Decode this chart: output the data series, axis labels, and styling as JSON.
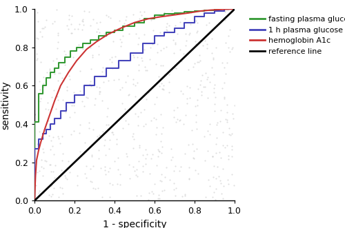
{
  "title": "",
  "xlabel": "1 - specificity",
  "ylabel": "sensitivity",
  "xlim": [
    0.0,
    1.0
  ],
  "ylim": [
    0.0,
    1.0
  ],
  "xticks": [
    0.0,
    0.2,
    0.4,
    0.6,
    0.8,
    1.0
  ],
  "yticks": [
    0.0,
    0.2,
    0.4,
    0.6,
    0.8,
    1.0
  ],
  "reference_line_color": "#000000",
  "green_color": "#339933",
  "blue_color": "#4444bb",
  "red_color": "#cc3333",
  "legend_labels": [
    "fasting plasma glucose",
    "1 h plasma glucose",
    "hemoglobin A1c",
    "reference line"
  ],
  "background_color": "#ffffff",
  "dot_color": "#cccccc",
  "green_fpr": [
    0.0,
    0.0,
    0.02,
    0.02,
    0.04,
    0.04,
    0.06,
    0.06,
    0.08,
    0.08,
    0.1,
    0.1,
    0.12,
    0.12,
    0.15,
    0.15,
    0.18,
    0.18,
    0.21,
    0.21,
    0.24,
    0.24,
    0.28,
    0.28,
    0.32,
    0.32,
    0.36,
    0.36,
    0.4,
    0.4,
    0.44,
    0.44,
    0.5,
    0.5,
    0.55,
    0.55,
    0.6,
    0.6,
    0.65,
    0.65,
    0.7,
    0.7,
    0.75,
    0.75,
    0.8,
    0.8,
    0.85,
    0.85,
    0.9,
    0.9,
    0.95,
    0.95,
    1.0
  ],
  "green_tpr": [
    0.0,
    0.41,
    0.41,
    0.56,
    0.56,
    0.6,
    0.6,
    0.64,
    0.64,
    0.67,
    0.67,
    0.69,
    0.69,
    0.72,
    0.72,
    0.75,
    0.75,
    0.78,
    0.78,
    0.8,
    0.8,
    0.82,
    0.82,
    0.84,
    0.84,
    0.86,
    0.86,
    0.88,
    0.88,
    0.89,
    0.89,
    0.91,
    0.91,
    0.93,
    0.93,
    0.95,
    0.95,
    0.97,
    0.97,
    0.975,
    0.975,
    0.98,
    0.98,
    0.985,
    0.985,
    0.99,
    0.99,
    0.995,
    0.995,
    1.0,
    1.0,
    1.0,
    1.0
  ],
  "blue_fpr": [
    0.0,
    0.0,
    0.02,
    0.02,
    0.04,
    0.04,
    0.06,
    0.06,
    0.08,
    0.08,
    0.1,
    0.1,
    0.13,
    0.13,
    0.16,
    0.16,
    0.2,
    0.2,
    0.25,
    0.25,
    0.3,
    0.3,
    0.36,
    0.36,
    0.42,
    0.42,
    0.48,
    0.48,
    0.54,
    0.54,
    0.6,
    0.6,
    0.65,
    0.65,
    0.7,
    0.7,
    0.75,
    0.75,
    0.8,
    0.8,
    0.85,
    0.85,
    0.9,
    0.9,
    0.95,
    0.95,
    1.0
  ],
  "blue_tpr": [
    0.0,
    0.27,
    0.27,
    0.32,
    0.32,
    0.35,
    0.35,
    0.37,
    0.37,
    0.4,
    0.4,
    0.43,
    0.43,
    0.47,
    0.47,
    0.51,
    0.51,
    0.55,
    0.55,
    0.6,
    0.6,
    0.65,
    0.65,
    0.69,
    0.69,
    0.73,
    0.73,
    0.77,
    0.77,
    0.82,
    0.82,
    0.86,
    0.86,
    0.88,
    0.88,
    0.9,
    0.9,
    0.93,
    0.93,
    0.96,
    0.96,
    0.98,
    0.98,
    0.99,
    0.99,
    1.0,
    1.0
  ],
  "red_fpr": [
    0.0,
    0.005,
    0.01,
    0.02,
    0.03,
    0.05,
    0.07,
    0.1,
    0.13,
    0.17,
    0.21,
    0.26,
    0.31,
    0.37,
    0.43,
    0.5,
    0.57,
    0.63,
    0.7,
    0.77,
    0.83,
    0.88,
    0.93,
    0.97,
    1.0
  ],
  "red_tpr": [
    0.0,
    0.13,
    0.21,
    0.26,
    0.3,
    0.37,
    0.43,
    0.52,
    0.6,
    0.67,
    0.73,
    0.79,
    0.83,
    0.87,
    0.9,
    0.93,
    0.95,
    0.96,
    0.97,
    0.98,
    0.99,
    0.995,
    0.998,
    1.0,
    1.0
  ],
  "figsize": [
    5.0,
    3.31
  ],
  "dpi": 100
}
